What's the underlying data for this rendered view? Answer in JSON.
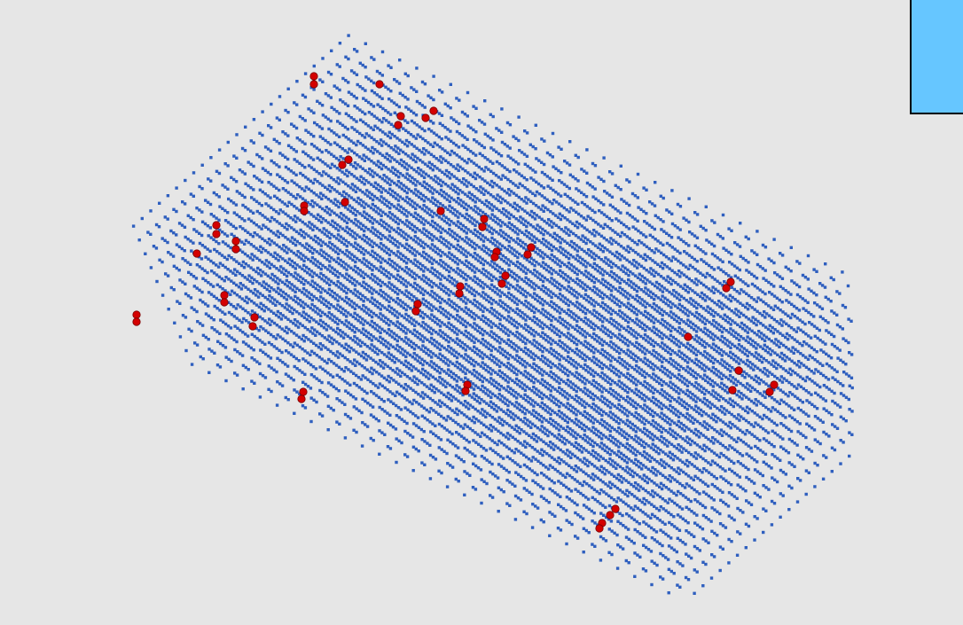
{
  "scene": {
    "background_color": "#e6e6e6",
    "lattice_atom_color": "#2f5fbf",
    "defect_atom_color": "#d40000",
    "defect_count": 48
  },
  "swatch": {
    "color": "#66c6ff"
  }
}
